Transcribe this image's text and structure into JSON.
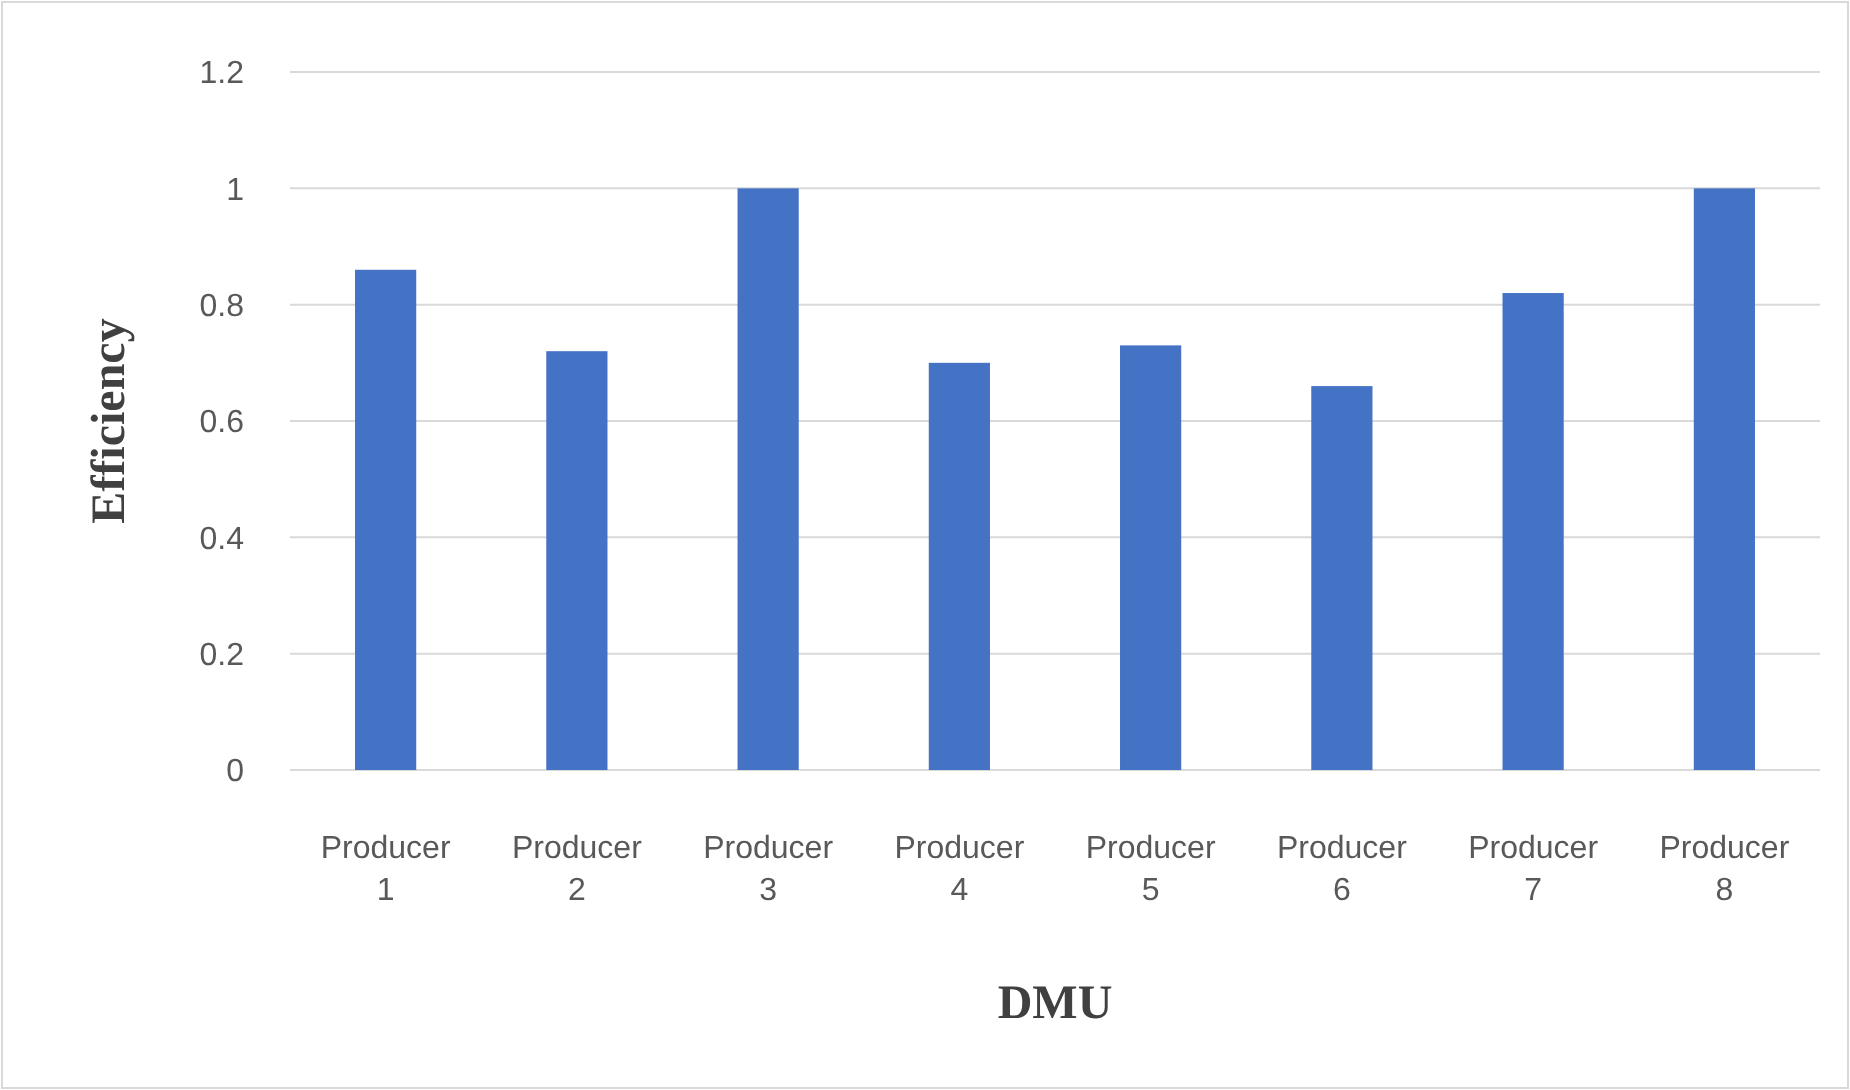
{
  "chart_data": {
    "type": "bar",
    "xlabel": "DMU",
    "ylabel": "Efficiency",
    "categories": [
      "Producer 1",
      "Producer 2",
      "Producer 3",
      "Producer 4",
      "Producer 5",
      "Producer 6",
      "Producer 7",
      "Producer 8"
    ],
    "values": [
      0.86,
      0.72,
      1,
      0.7,
      0.73,
      0.66,
      0.82,
      1
    ],
    "color": "#4472c4",
    "ylim": [
      0,
      1.2
    ],
    "yticks": [
      0,
      0.2,
      0.4,
      0.6,
      0.8,
      1,
      1.2
    ],
    "grid": "y"
  }
}
